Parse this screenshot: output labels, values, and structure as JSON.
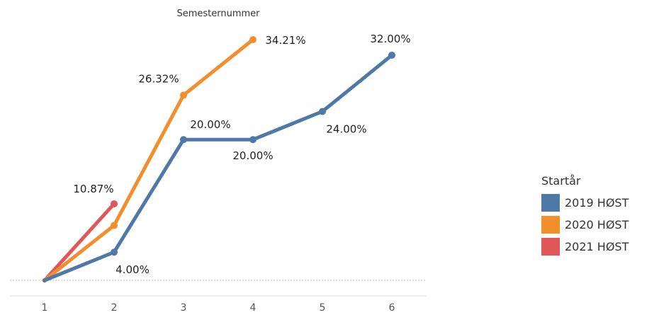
{
  "chart_data": {
    "type": "line",
    "title": "",
    "xlabel": "Semesternummer",
    "ylabel": "",
    "x": [
      1,
      2,
      3,
      4,
      5,
      6
    ],
    "x_tick_labels": [
      "1",
      "2",
      "3",
      "4",
      "5",
      "6"
    ],
    "ylim": [
      0,
      35
    ],
    "grid": false,
    "legend_position": "right",
    "legend_title": "Startår",
    "series": [
      {
        "name": "2019 HØST",
        "color": "#4e79a7",
        "x": [
          1,
          2,
          3,
          4,
          5,
          6
        ],
        "values": [
          0,
          4.0,
          20.0,
          20.0,
          24.0,
          32.0
        ],
        "labels": [
          "",
          "4.00%",
          "20.00%",
          "20.00%",
          "24.00%",
          "32.00%"
        ]
      },
      {
        "name": "2020 HØST",
        "color": "#f28e2b",
        "x": [
          1,
          2,
          3,
          4
        ],
        "values": [
          0,
          7.8,
          26.32,
          34.21
        ],
        "labels": [
          "",
          "",
          "26.32%",
          "34.21%"
        ]
      },
      {
        "name": "2021 HØST",
        "color": "#e15759",
        "x": [
          1,
          2
        ],
        "values": [
          0,
          10.87
        ],
        "labels": [
          "",
          "10.87%"
        ]
      }
    ]
  }
}
